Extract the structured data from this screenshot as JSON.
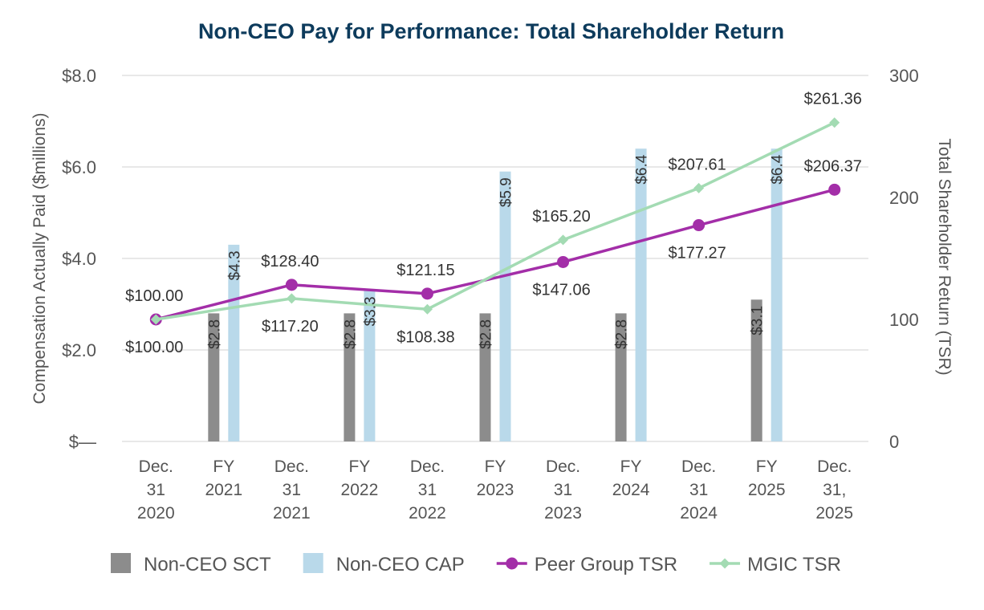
{
  "chart_data": {
    "type": "bar",
    "title": "Non-CEO Pay for Performance: Total Shareholder Return",
    "ylabel": "Compensation Actually Paid ($millions)",
    "y2label": "Total Shareholder Return (TSR)",
    "ylim": [
      0,
      8
    ],
    "y2lim": [
      0,
      300
    ],
    "y_ticks": [
      {
        "value": 0,
        "label": "$—"
      },
      {
        "value": 2,
        "label": "$2.0"
      },
      {
        "value": 4,
        "label": "$4.0"
      },
      {
        "value": 6,
        "label": "$6.0"
      },
      {
        "value": 8,
        "label": "$8.0"
      }
    ],
    "y2_ticks": [
      {
        "value": 0,
        "label": "0"
      },
      {
        "value": 100,
        "label": "100"
      },
      {
        "value": 200,
        "label": "200"
      },
      {
        "value": 300,
        "label": "300"
      }
    ],
    "grid": true,
    "categories": [
      [
        "Dec.",
        "31",
        "2020"
      ],
      [
        "FY",
        "2021"
      ],
      [
        "Dec.",
        "31",
        "2021"
      ],
      [
        "FY",
        "2022"
      ],
      [
        "Dec.",
        "31",
        "2022"
      ],
      [
        "FY",
        "2023"
      ],
      [
        "Dec.",
        "31",
        "2023"
      ],
      [
        "FY",
        "2024"
      ],
      [
        "Dec.",
        "31",
        "2024"
      ],
      [
        "FY",
        "2025"
      ],
      [
        "Dec.",
        "31,",
        "2025"
      ]
    ],
    "bar_series": [
      {
        "name": "Non-CEO SCT",
        "color": "#8c8c8c",
        "points": [
          {
            "category_index": 1,
            "value": 2.8,
            "label": "$2.8"
          },
          {
            "category_index": 3,
            "value": 2.8,
            "label": "$2.8"
          },
          {
            "category_index": 5,
            "value": 2.8,
            "label": "$2.8"
          },
          {
            "category_index": 7,
            "value": 2.8,
            "label": "$2.8"
          },
          {
            "category_index": 9,
            "value": 3.1,
            "label": "$3.1"
          }
        ]
      },
      {
        "name": "Non-CEO CAP",
        "color": "#b9d9ea",
        "points": [
          {
            "category_index": 1,
            "value": 4.3,
            "label": "$4.3"
          },
          {
            "category_index": 3,
            "value": 3.3,
            "label": "$3.3"
          },
          {
            "category_index": 5,
            "value": 5.9,
            "label": "$5.9"
          },
          {
            "category_index": 7,
            "value": 6.4,
            "label": "$6.4"
          },
          {
            "category_index": 9,
            "value": 6.4,
            "label": "$6.4"
          }
        ]
      }
    ],
    "line_series": [
      {
        "name": "Peer Group TSR",
        "color": "#a32ea8",
        "marker": "circle",
        "points": [
          {
            "category_index": 0,
            "value": 100.0,
            "label": "$100.00",
            "label_pos": "above"
          },
          {
            "category_index": 2,
            "value": 128.4,
            "label": "$128.40",
            "label_pos": "above"
          },
          {
            "category_index": 4,
            "value": 121.15,
            "label": "$121.15",
            "label_pos": "above"
          },
          {
            "category_index": 6,
            "value": 147.06,
            "label": "$147.06",
            "label_pos": "below"
          },
          {
            "category_index": 8,
            "value": 177.27,
            "label": "$177.27",
            "label_pos": "below"
          },
          {
            "category_index": 10,
            "value": 206.37,
            "label": "$206.37",
            "label_pos": "above"
          }
        ]
      },
      {
        "name": "MGIC TSR",
        "color": "#a3dbb3",
        "marker": "diamond",
        "points": [
          {
            "category_index": 0,
            "value": 100.0,
            "label": "$100.00",
            "label_pos": "below"
          },
          {
            "category_index": 2,
            "value": 117.2,
            "label": "$117.20",
            "label_pos": "below"
          },
          {
            "category_index": 4,
            "value": 108.38,
            "label": "$108.38",
            "label_pos": "below"
          },
          {
            "category_index": 6,
            "value": 165.2,
            "label": "$165.20",
            "label_pos": "above"
          },
          {
            "category_index": 8,
            "value": 207.61,
            "label": "$207.61",
            "label_pos": "above"
          },
          {
            "category_index": 10,
            "value": 261.36,
            "label": "$261.36",
            "label_pos": "above"
          }
        ]
      }
    ],
    "legend": [
      {
        "name": "Non-CEO SCT",
        "kind": "bar",
        "color": "#8c8c8c"
      },
      {
        "name": "Non-CEO CAP",
        "kind": "bar",
        "color": "#b9d9ea"
      },
      {
        "name": "Peer Group TSR",
        "kind": "line-circle",
        "color": "#a32ea8"
      },
      {
        "name": "MGIC TSR",
        "kind": "line-diamond",
        "color": "#a3dbb3"
      }
    ],
    "legend_position": "bottom"
  }
}
